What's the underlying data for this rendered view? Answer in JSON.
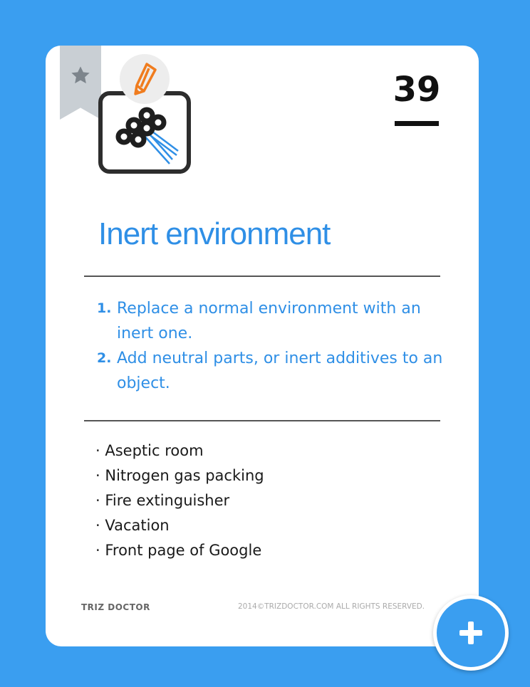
{
  "card": {
    "number": "39",
    "title": "Inert environment",
    "principles": [
      {
        "num": "1.",
        "text": "Replace a normal environment with an inert one."
      },
      {
        "num": "2.",
        "text": "Add neutral parts, or inert additives to an object."
      }
    ],
    "examples": [
      "Aseptic room",
      "Nitrogen gas packing",
      "Fire extinguisher",
      "Vacation",
      "Front page of Google"
    ],
    "footer": {
      "brand": "TRIZ DOCTOR",
      "copyright": "2014©TRIZDOCTOR.COM  ALL RIGHTS RESERVED."
    }
  },
  "icons": {
    "bookmark": "star-icon",
    "edit": "pencil-icon",
    "principle": "bubbles-icon",
    "fab": "plus-icon"
  },
  "colors": {
    "background": "#3a9ef0",
    "accent": "#2f8fe6",
    "edit_icon": "#f07c1e"
  }
}
